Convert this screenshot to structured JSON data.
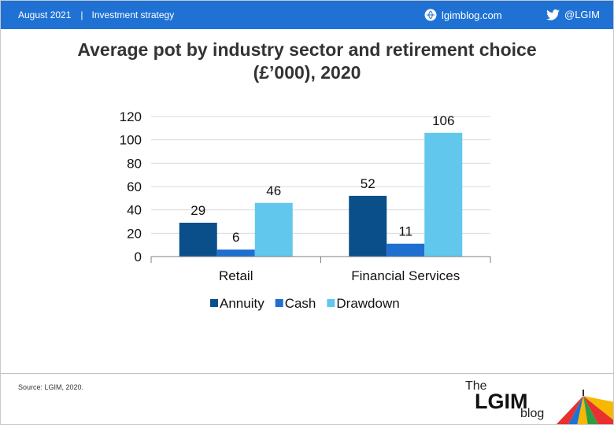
{
  "header": {
    "date": "August 2021",
    "separator": "|",
    "section": "Investment strategy",
    "site": "lgimblog.com",
    "twitter": "@LGIM"
  },
  "title_line1": "Average pot by industry sector and retirement choice",
  "title_line2": "(£’000), 2020",
  "chart_data": {
    "type": "bar",
    "title": "Average pot by industry sector and retirement choice (£’000), 2020",
    "categories": [
      "Retail",
      "Financial Services"
    ],
    "series": [
      {
        "name": "Annuity",
        "values": [
          29,
          52
        ],
        "color": "#0b4f8a"
      },
      {
        "name": "Cash",
        "values": [
          6,
          11
        ],
        "color": "#1f6fd1"
      },
      {
        "name": "Drawdown",
        "values": [
          46,
          106
        ],
        "color": "#62c7ec"
      }
    ],
    "ylim": [
      0,
      120
    ],
    "yticks": [
      0,
      20,
      40,
      60,
      80,
      100,
      120
    ],
    "grid": true,
    "legend": "bottom",
    "data_labels": true
  },
  "footer": {
    "source": "Source: LGIM, 2020.",
    "brand_the": "The",
    "brand_lgim": "LGIM",
    "brand_blog": "blog"
  }
}
